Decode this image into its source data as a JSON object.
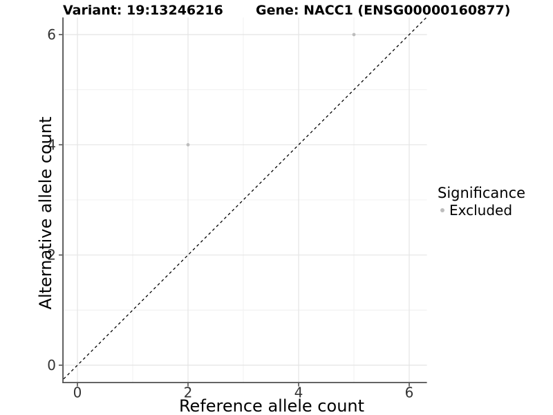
{
  "header": {
    "variant": "Variant: 19:13246216",
    "gene": "Gene: NACC1 (ENSG00000160877)"
  },
  "chart_data": {
    "type": "scatter",
    "title": "Variant: 19:13246216   Gene: NACC1 (ENSG00000160877)",
    "xlabel": "Reference allele count",
    "ylabel": "Alternative allele count",
    "x_ticks": [
      0,
      2,
      4,
      6
    ],
    "y_ticks": [
      0,
      2,
      4,
      6
    ],
    "x_minor_ticks": [
      1,
      3,
      5
    ],
    "y_minor_ticks": [
      1,
      3,
      5
    ],
    "xlim": [
      -0.25,
      6.32
    ],
    "ylim": [
      -0.31,
      6.31
    ],
    "grid": "major_and_minor",
    "points": [
      {
        "x": 2,
        "y": 4,
        "series": "Excluded"
      },
      {
        "x": 5,
        "y": 6,
        "series": "Excluded"
      }
    ],
    "reference_line": {
      "kind": "identity",
      "slope": 1,
      "intercept": 0,
      "style": "dashed"
    },
    "legend": {
      "title": "Significance",
      "position": "right",
      "entries": [
        {
          "label": "Excluded",
          "color": "#bdbdbd"
        }
      ]
    }
  },
  "colors": {
    "point": "#bdbdbd",
    "reference_line": "#000000",
    "axis_line": "#4f4f4f",
    "tick_label": "#333333",
    "grid_major": "#e4e4e4",
    "grid_minor": "#f1f1f1",
    "background": "#ffffff"
  }
}
